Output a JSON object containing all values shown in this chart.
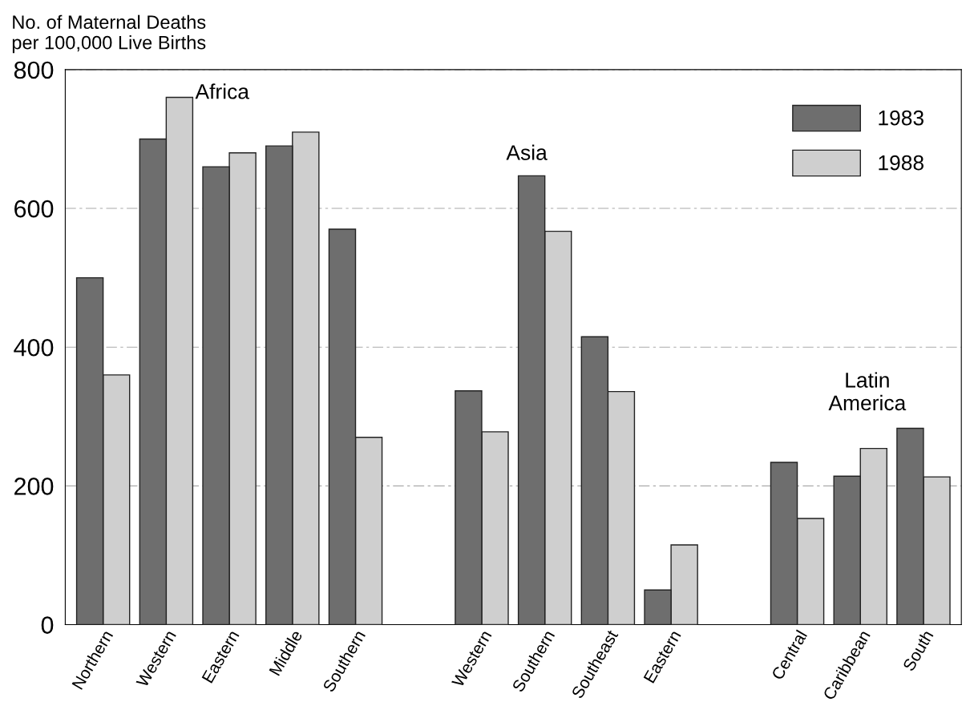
{
  "chart_data": {
    "type": "bar",
    "ylabel": "No. of Maternal Deaths\nper 100,000 Live Births",
    "categories": [
      "Northern",
      "Western",
      "Eastern",
      "Middle",
      "Southern",
      null,
      "Western",
      "Southern",
      "Southeast",
      "Eastern",
      null,
      "Central",
      "Caribbean",
      "South"
    ],
    "series": [
      {
        "name": "1983",
        "color": "#6e6e6e",
        "values": [
          500,
          700,
          660,
          690,
          570,
          null,
          337,
          647,
          415,
          50,
          null,
          234,
          214,
          283
        ]
      },
      {
        "name": "1988",
        "color": "#cfcfcf",
        "values": [
          360,
          760,
          680,
          710,
          270,
          null,
          278,
          567,
          336,
          115,
          null,
          153,
          254,
          213
        ]
      }
    ],
    "ylim": [
      0,
      800
    ],
    "yticks": [
      0,
      200,
      400,
      600,
      800
    ],
    "grid": "y",
    "legend": "top right",
    "annotations": [
      "Africa",
      "Asia",
      "Latin\nAmerica"
    ]
  }
}
